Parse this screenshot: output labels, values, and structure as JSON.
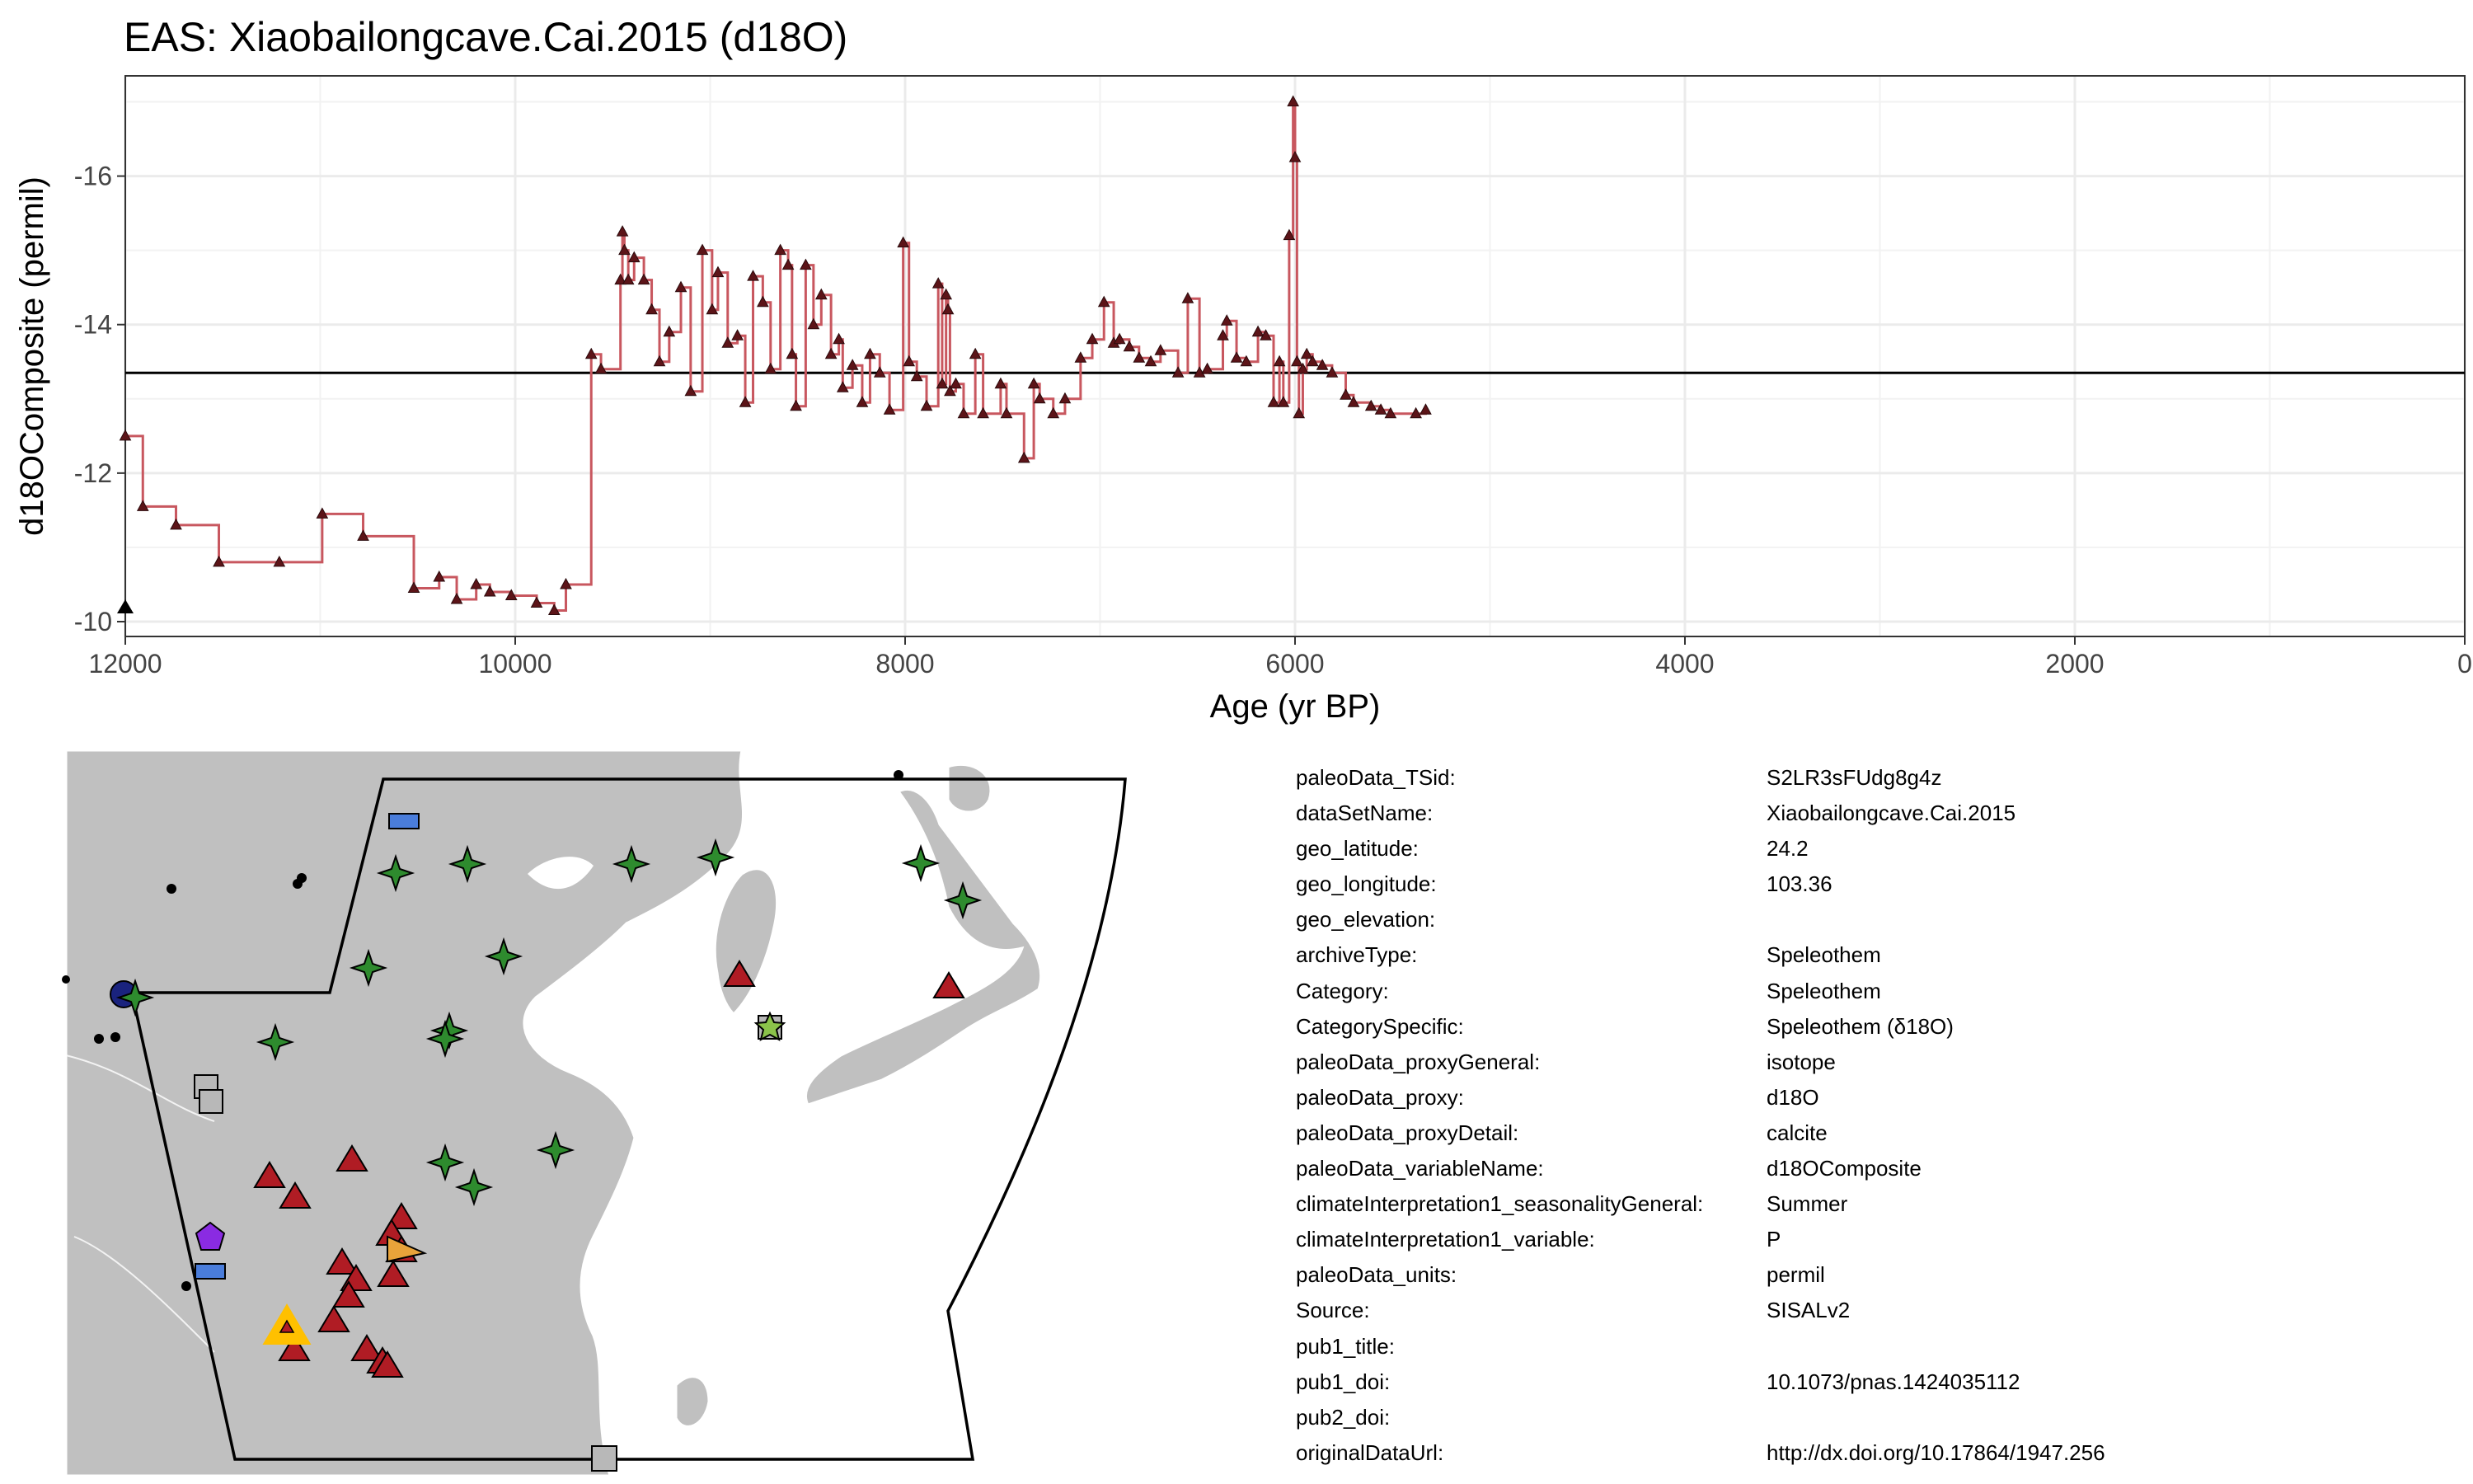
{
  "chart_data": {
    "type": "line",
    "title": "EAS: Xiaobailongcave.Cai.2015 (d18O)",
    "xlabel": "Age (yr BP)",
    "ylabel": "d18OComposite (permil)",
    "x_reversed": true,
    "y_reversed": true,
    "xlim": [
      12000,
      0
    ],
    "ylim": [
      -9.8,
      -17.35
    ],
    "xticks": [
      12000,
      10000,
      8000,
      6000,
      4000,
      2000,
      0
    ],
    "xtick_labels": [
      "12000",
      "10000",
      "8000",
      "6000",
      "4000",
      "2000",
      "0"
    ],
    "yticks": [
      -10,
      -12,
      -14,
      -16
    ],
    "ytick_labels": [
      "-10",
      "-12",
      "-14",
      "-16"
    ],
    "grid": true,
    "reference_line": {
      "y": -13.35,
      "color": "#000000"
    },
    "colors": {
      "line": "#c8575f",
      "marker": "#5c1418",
      "reference": "#000000",
      "grid": "#ebebeb"
    },
    "series": [
      {
        "x": [
          12000,
          11910,
          11740,
          11520,
          11210,
          10990,
          10780,
          10520,
          10390,
          10300,
          10200,
          10130,
          10020,
          9890,
          9800,
          9740,
          9610,
          9560,
          9460,
          9450,
          9440,
          9420,
          9390,
          9340,
          9300,
          9260,
          9210,
          9150,
          9100,
          9040,
          8990,
          8960,
          8910,
          8860,
          8820,
          8780,
          8730,
          8690,
          8640,
          8600,
          8580,
          8560,
          8510,
          8470,
          8430,
          8380,
          8340,
          8320,
          8270,
          8220,
          8180,
          8130,
          8080,
          8010,
          7980,
          7940,
          7890,
          7830,
          7810,
          7790,
          7780,
          7770,
          7740,
          7700,
          7640,
          7600,
          7510,
          7480,
          7390,
          7340,
          7310,
          7240,
          7180,
          7100,
          7040,
          6980,
          6930,
          6900,
          6850,
          6800,
          6740,
          6690,
          6600,
          6550,
          6490,
          6450,
          6370,
          6350,
          6300,
          6250,
          6190,
          6150,
          6110,
          6080,
          6060,
          6030,
          6010,
          6000,
          5990,
          5980,
          5960,
          5940,
          5910,
          5860,
          5810,
          5740,
          5700,
          5610,
          5560,
          5510,
          5380,
          5330
        ],
        "y": [
          -12.5,
          -11.55,
          -11.3,
          -10.8,
          -10.8,
          -11.45,
          -11.15,
          -10.45,
          -10.6,
          -10.3,
          -10.5,
          -10.4,
          -10.35,
          -10.25,
          -10.15,
          -10.5,
          -13.6,
          -13.4,
          -14.6,
          -15.25,
          -15.0,
          -14.6,
          -14.9,
          -14.6,
          -14.2,
          -13.5,
          -13.9,
          -14.5,
          -13.1,
          -15.0,
          -14.2,
          -14.7,
          -13.75,
          -13.85,
          -12.95,
          -14.65,
          -14.3,
          -13.4,
          -15.0,
          -14.8,
          -13.6,
          -12.9,
          -14.8,
          -14.0,
          -14.4,
          -13.6,
          -13.8,
          -13.15,
          -13.45,
          -12.95,
          -13.6,
          -13.35,
          -12.85,
          -15.1,
          -13.5,
          -13.3,
          -12.9,
          -14.55,
          -13.2,
          -14.4,
          -14.2,
          -13.1,
          -13.2,
          -12.8,
          -13.6,
          -12.8,
          -13.2,
          -12.8,
          -12.2,
          -13.2,
          -13.0,
          -12.8,
          -13.0,
          -13.55,
          -13.8,
          -14.3,
          -13.75,
          -13.8,
          -13.7,
          -13.55,
          -13.5,
          -13.65,
          -13.35,
          -14.35,
          -13.35,
          -13.4,
          -13.85,
          -14.05,
          -13.55,
          -13.5,
          -13.9,
          -13.85,
          -12.95,
          -13.5,
          -12.95,
          -15.2,
          -17.0,
          -16.25,
          -13.5,
          -12.8,
          -13.4,
          -13.6,
          -13.5,
          -13.45,
          -13.35,
          -13.05,
          -12.95,
          -12.9,
          -12.85,
          -12.8,
          -12.8,
          -12.85
        ]
      }
    ]
  },
  "map": {
    "colors": {
      "land": "#c0c0c0",
      "coast": "#ffffff",
      "sea": "#ffffff",
      "region": "#000000"
    },
    "marker_legend": [
      {
        "shape": "triangle",
        "color": "#b01c24",
        "meaning": "Speleothem"
      },
      {
        "shape": "star4",
        "color": "#2e8b2e",
        "meaning": "Speleothem"
      },
      {
        "shape": "square",
        "color": "#b8b8b8",
        "meaning": "other"
      },
      {
        "shape": "rect",
        "color": "#4a7ddb",
        "meaning": "other"
      },
      {
        "shape": "pentagon",
        "color": "#8a2be2",
        "meaning": "other"
      },
      {
        "shape": "triangle-highlight",
        "color": "#ffc000",
        "meaning": "this record"
      }
    ]
  },
  "metadata": [
    {
      "key": "paleoData_TSid:",
      "value": "S2LR3sFUdg8g4z"
    },
    {
      "key": "dataSetName:",
      "value": "Xiaobailongcave.Cai.2015"
    },
    {
      "key": "geo_latitude:",
      "value": "24.2"
    },
    {
      "key": "geo_longitude:",
      "value": "103.36"
    },
    {
      "key": "geo_elevation:",
      "value": ""
    },
    {
      "key": "archiveType:",
      "value": "Speleothem"
    },
    {
      "key": "Category:",
      "value": "Speleothem"
    },
    {
      "key": "CategorySpecific:",
      "value": "Speleothem (δ18O)"
    },
    {
      "key": "paleoData_proxyGeneral:",
      "value": "isotope"
    },
    {
      "key": "paleoData_proxy:",
      "value": "d18O"
    },
    {
      "key": "paleoData_proxyDetail:",
      "value": "calcite"
    },
    {
      "key": "paleoData_variableName:",
      "value": "d18OComposite"
    },
    {
      "key": "climateInterpretation1_seasonalityGeneral:",
      "value": "Summer"
    },
    {
      "key": "climateInterpretation1_variable:",
      "value": "P"
    },
    {
      "key": "paleoData_units:",
      "value": "permil"
    },
    {
      "key": "Source:",
      "value": "SISALv2"
    },
    {
      "key": "pub1_title:",
      "value": ""
    },
    {
      "key": "pub1_doi:",
      "value": "10.1073/pnas.1424035112"
    },
    {
      "key": "pub2_doi:",
      "value": ""
    },
    {
      "key": "originalDataUrl:",
      "value": "http://dx.doi.org/10.17864/1947.256"
    }
  ]
}
